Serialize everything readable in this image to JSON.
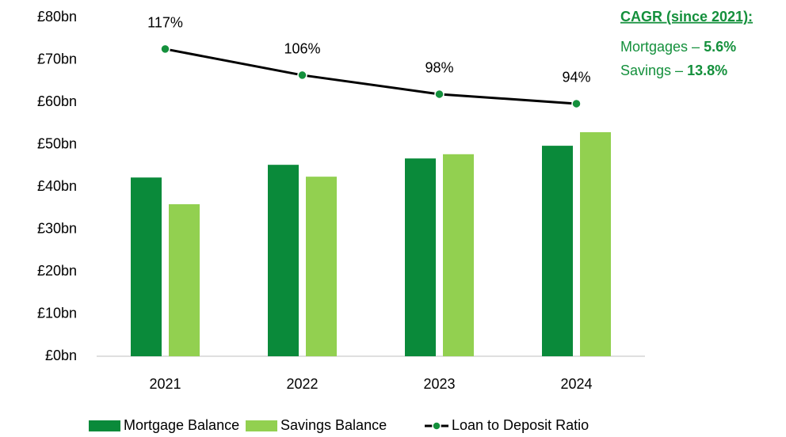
{
  "chart_data": {
    "type": "bar_line",
    "categories": [
      "2021",
      "2022",
      "2023",
      "2024"
    ],
    "series": [
      {
        "name": "Mortgage Balance",
        "type": "bar",
        "color": "#0a8a3a",
        "values": [
          42.2,
          45.2,
          46.7,
          49.7
        ]
      },
      {
        "name": "Savings Balance",
        "type": "bar",
        "color": "#92d050",
        "values": [
          35.9,
          42.4,
          47.7,
          52.9
        ]
      },
      {
        "name": "Loan to Deposit Ratio",
        "type": "line",
        "axis": "y2",
        "color": "#000000",
        "marker_color": "#14903c",
        "values": [
          117,
          106,
          98,
          94
        ],
        "value_labels": [
          "117%",
          "106%",
          "98%",
          "94%"
        ]
      }
    ],
    "ylim": [
      0,
      80
    ],
    "yticks": [
      {
        "value": 0,
        "label": "£0bn"
      },
      {
        "value": 10,
        "label": "£10bn"
      },
      {
        "value": 20,
        "label": "£20bn"
      },
      {
        "value": 30,
        "label": "£30bn"
      },
      {
        "value": 40,
        "label": "£40bn"
      },
      {
        "value": 50,
        "label": "£50bn"
      },
      {
        "value": 60,
        "label": "£60bn"
      },
      {
        "value": 70,
        "label": "£70bn"
      },
      {
        "value": 80,
        "label": "£80bn"
      }
    ],
    "y2lim": [
      -12.3,
      130.3
    ],
    "annotation": {
      "title": "CAGR (since 2021):",
      "lines": [
        [
          "Mortgages – ",
          "5.6%"
        ],
        [
          "Savings – ",
          "13.8%"
        ]
      ]
    },
    "legend": "bottom",
    "grid": false
  }
}
